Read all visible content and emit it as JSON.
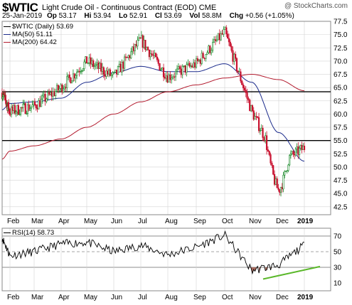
{
  "header": {
    "symbol": "$WTIC",
    "description": "Light Crude Oil - Continuous Contract (EOD)",
    "exchange": "CME",
    "date": "25-Jan-2019",
    "open_label": "Op",
    "open": "53.17",
    "high_label": "Hi",
    "high": "53.94",
    "low_label": "Lo",
    "low": "52.91",
    "close_label": "Cl",
    "close": "53.69",
    "vol_label": "Vol",
    "vol": "58.8M",
    "chg_label": "Chg",
    "chg": "+0.56 (+1.05%)",
    "brand": "@ StockCharts.com"
  },
  "legend": {
    "price": "$WTIC (Daily) 53.69",
    "ma50": "MA(50) 51.11",
    "ma200": "MA(200) 64.42",
    "rsi": "RSI(14) 58.73"
  },
  "colors": {
    "ma50": "#1c2c8c",
    "ma200": "#b31b2e",
    "candle_up": "#1a8a2a",
    "candle_down": "#c8102e",
    "rsi_line": "#000000",
    "rsi_fill": "#a66a5e",
    "trend_line": "#5ab82a",
    "grid": "#d4d4d4"
  },
  "chart_data": [
    {
      "type": "line",
      "title": "$WTIC Light Crude Oil - Continuous Contract (EOD)",
      "ylim": [
        41,
        77.5
      ],
      "y_ticks": [
        "77.5",
        "75.0",
        "72.5",
        "70.0",
        "67.5",
        "65.0",
        "62.5",
        "60.0",
        "57.5",
        "55.0",
        "52.5",
        "50.0",
        "47.5",
        "45.0",
        "42.5"
      ],
      "x_labels": [
        "Feb",
        "Mar",
        "Apr",
        "May",
        "Jun",
        "Jul",
        "Aug",
        "Sep",
        "Oct",
        "Nov",
        "Dec",
        "2019"
      ],
      "horizontal_lines": [
        64.2,
        55.0
      ],
      "series": [
        {
          "name": "$WTIC (Daily) 53.69",
          "x": [
            "Jan",
            "Feb",
            "Mar",
            "Apr",
            "May",
            "Jun",
            "Jul",
            "Aug",
            "Sep",
            "Oct",
            "Nov",
            "Dec",
            "Jan"
          ],
          "values": [
            64.0,
            60.5,
            61.5,
            65.0,
            70.0,
            67.0,
            74.0,
            67.0,
            69.5,
            75.5,
            60.5,
            50.5,
            53.7
          ]
        },
        {
          "name": "MA(50) 51.11",
          "x": [
            "Jan",
            "Feb",
            "Mar",
            "Apr",
            "May",
            "Jun",
            "Jul",
            "Aug",
            "Sep",
            "Oct",
            "Nov",
            "Dec",
            "Jan"
          ],
          "values": [
            60.8,
            62.0,
            62.3,
            63.0,
            66.0,
            67.8,
            69.0,
            68.0,
            68.0,
            69.5,
            66.0,
            56.5,
            51.1
          ]
        },
        {
          "name": "MA(200) 64.42",
          "x": [
            "Jan",
            "Feb",
            "Mar",
            "Apr",
            "May",
            "Jun",
            "Jul",
            "Aug",
            "Sep",
            "Oct",
            "Nov",
            "Dec",
            "Jan"
          ],
          "values": [
            51.5,
            53.0,
            54.0,
            55.3,
            57.5,
            60.0,
            62.3,
            64.2,
            65.5,
            66.8,
            67.5,
            66.5,
            64.4
          ]
        }
      ]
    },
    {
      "type": "line",
      "title": "RSI(14) 58.73",
      "ylim": [
        0,
        80
      ],
      "y_ticks": [
        "70",
        "50",
        "30",
        "10"
      ],
      "reference_lines": [
        70,
        50,
        30
      ],
      "series": [
        {
          "name": "RSI(14) 58.73",
          "x": [
            "Jan",
            "Feb",
            "Mar",
            "Apr",
            "May",
            "Jun",
            "Jul",
            "Aug",
            "Sep",
            "Oct",
            "Nov",
            "Dec",
            "Jan"
          ],
          "values": [
            68,
            45,
            50,
            60,
            62,
            50,
            58,
            46,
            56,
            71,
            26,
            33,
            58.7
          ]
        }
      ]
    }
  ]
}
